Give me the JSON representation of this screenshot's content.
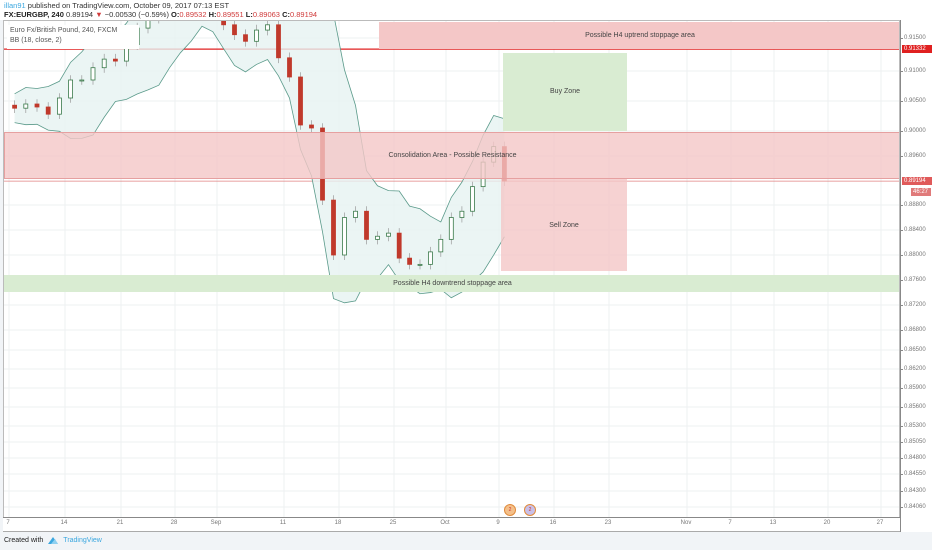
{
  "header": {
    "author": "illan91",
    "published": "published on TradingView.com, October 09, 2017 07:13 EST",
    "symbol": "FX:EURGBP, 240",
    "last": "0.89194",
    "change": "−0.00530 (−0.59%)",
    "o_label": "O:",
    "o": "0.89532",
    "h_label": "H:",
    "h": "0.89551",
    "l_label": "L:",
    "l": "0.89063",
    "c_label": "C:",
    "c": "0.89194",
    "down_icon": "triangle-down-icon"
  },
  "legend": {
    "title": "Euro Fx/British Pound, 240, FXCM",
    "indicator": "BB (18, close, 2)"
  },
  "price_axis": {
    "ticks": [
      "0.91500",
      "0.91000",
      "0.90500",
      "0.90000",
      "0.89600",
      "0.88800",
      "0.88400",
      "0.88000",
      "0.87600",
      "0.87200",
      "0.86800",
      "0.86500",
      "0.86200",
      "0.85900",
      "0.85600",
      "0.85300",
      "0.85050",
      "0.84800",
      "0.84550",
      "0.84300",
      "0.84060"
    ],
    "resistance_tag": "0.91332",
    "last_price_tag": "0.89194",
    "countdown_tag": "46:27"
  },
  "time_axis": {
    "ticks": [
      "7",
      "14",
      "21",
      "28",
      "Sep",
      "11",
      "18",
      "25",
      "Oct",
      "9",
      "16",
      "23",
      "Nov",
      "7",
      "13",
      "20",
      "27"
    ]
  },
  "zones": {
    "uptrend_stop": {
      "label": "Possible H4 uptrend stoppage area",
      "from": 0.91332,
      "to": 0.9175
    },
    "buy": {
      "label": "Buy Zone",
      "from": 0.9,
      "to": 0.9128
    },
    "consolidation": {
      "label": "Consolidation Area - Possible Resistance",
      "from": 0.8922,
      "to": 0.8998
    },
    "sell": {
      "label": "Sell Zone",
      "from": 0.8774,
      "to": 0.8922
    },
    "downtrend_stop": {
      "label": "Possible H4 downtrend stoppage area",
      "from": 0.8741,
      "to": 0.8768
    },
    "resistance_line": 0.91332
  },
  "chart_data": {
    "type": "candlestick",
    "x_start": "Aug 7",
    "closes": [
      0.9038,
      0.9045,
      0.904,
      0.9028,
      0.9055,
      0.9085,
      0.9085,
      0.9105,
      0.9118,
      0.9115,
      0.914,
      0.9165,
      0.918,
      0.92,
      0.921,
      0.923,
      0.924,
      0.922,
      0.919,
      0.917,
      0.9155,
      0.9145,
      0.9162,
      0.917,
      0.912,
      0.909,
      0.901,
      0.9005,
      0.8888,
      0.88,
      0.886,
      0.887,
      0.8825,
      0.883,
      0.8835,
      0.8795,
      0.8785,
      0.8785,
      0.8805,
      0.8825,
      0.886,
      0.887,
      0.891,
      0.895,
      0.8975,
      0.8919
    ],
    "indicator": "BB (18, close, 2)",
    "colors": {
      "up": "#3a7a4a",
      "down": "#c0392b",
      "band": "#5a9a8a",
      "band_fill": "#e6f3f1",
      "red_zone": "#f4c7c7",
      "green_zone": "#d9ecd2",
      "resistance": "#e02020"
    }
  },
  "footer": {
    "created": "Created with",
    "brand": "TradingView",
    "logo_icon": "tradingview-logo-icon"
  },
  "events": [
    {
      "label": "2",
      "icon": "uk-flag-event-icon"
    },
    {
      "label": "2",
      "icon": "eu-flag-event-icon"
    }
  ]
}
